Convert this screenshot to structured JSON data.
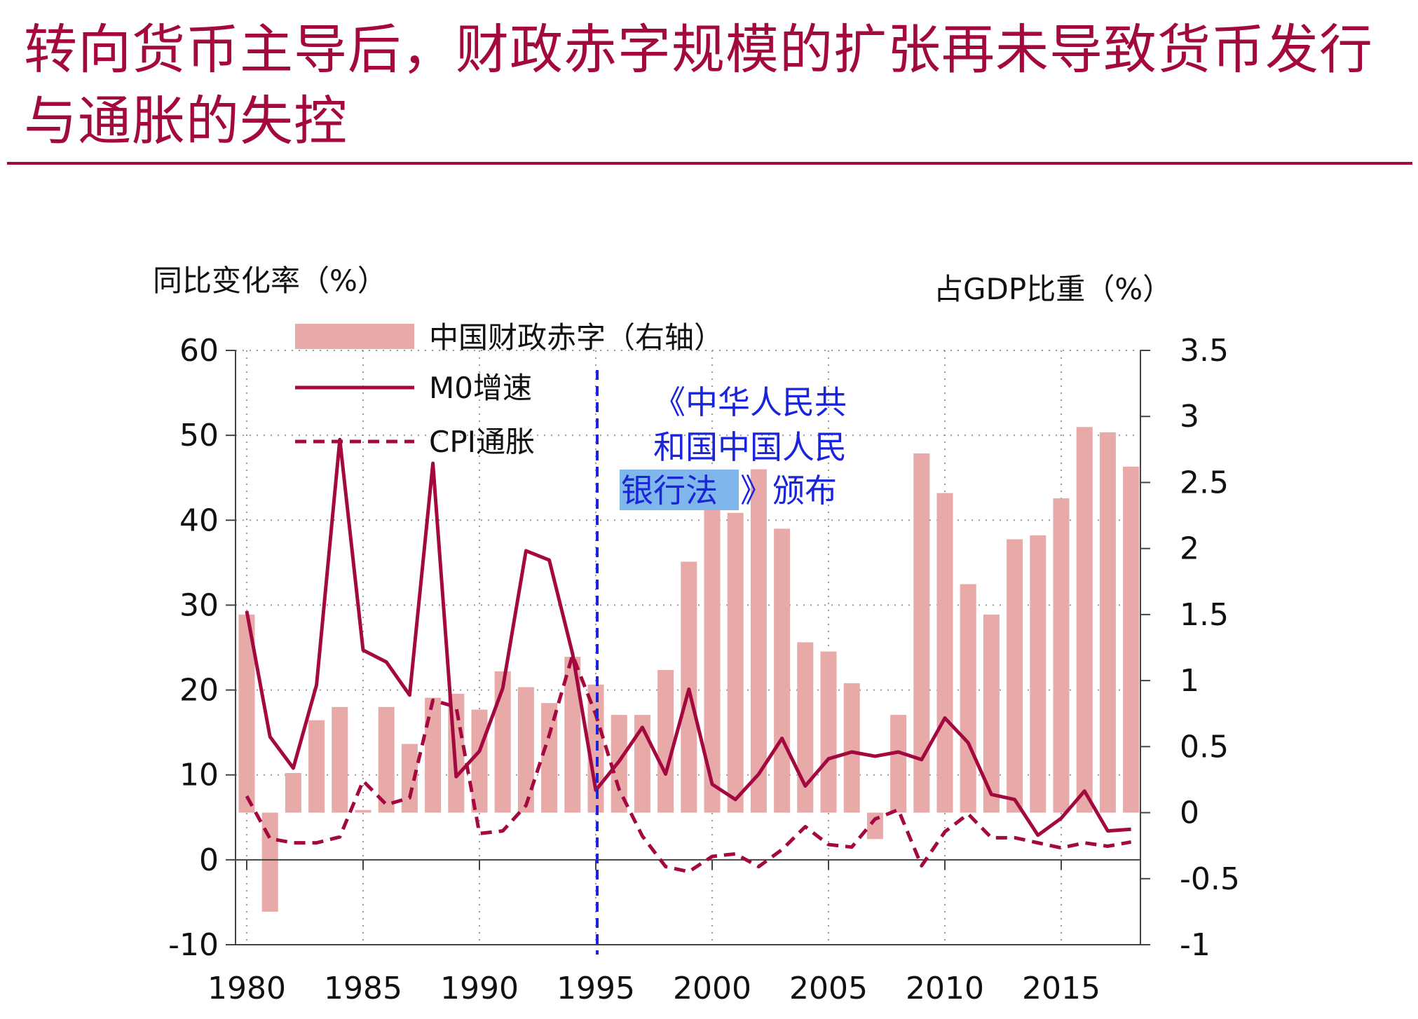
{
  "title": "转向货币主导后，财政赤字规模的扩张再未导致货币发行与通胀的失控",
  "chart_data": {
    "type": "bar+line",
    "left_axis_label": "同比变化率（%）",
    "right_axis_label": "占GDP比重（%）",
    "left_ylim": [
      -10,
      60
    ],
    "left_ticks": [
      "60",
      "50",
      "40",
      "30",
      "20",
      "10",
      "0",
      "-10"
    ],
    "right_ylim": [
      -1,
      3.5
    ],
    "right_ticks": [
      "3.5",
      "3",
      "2.5",
      "2",
      "1.5",
      "1",
      "0.5",
      "0",
      "-0.5",
      "-1"
    ],
    "x_ticks": [
      "1980",
      "1985",
      "1990",
      "1995",
      "2000",
      "2005",
      "2010",
      "2015"
    ],
    "years": [
      1980,
      1981,
      1982,
      1983,
      1984,
      1985,
      1986,
      1987,
      1988,
      1989,
      1990,
      1991,
      1992,
      1993,
      1994,
      1995,
      1996,
      1997,
      1998,
      1999,
      2000,
      2001,
      2002,
      2003,
      2004,
      2005,
      2006,
      2007,
      2008,
      2009,
      2010,
      2011,
      2012,
      2013,
      2014,
      2015,
      2016,
      2017,
      2018
    ],
    "series": [
      {
        "name": "中国财政赤字（右轴）",
        "axis": "right",
        "kind": "bar",
        "color": "#e8a9a9",
        "values": [
          1.5,
          -0.75,
          0.3,
          0.7,
          0.8,
          0.02,
          0.8,
          0.52,
          0.87,
          0.9,
          0.78,
          1.07,
          0.95,
          0.83,
          1.18,
          0.97,
          0.74,
          0.74,
          1.08,
          1.9,
          2.5,
          2.27,
          2.6,
          2.15,
          1.29,
          1.22,
          0.98,
          -0.2,
          0.74,
          2.72,
          2.42,
          1.73,
          1.5,
          2.07,
          2.1,
          2.38,
          2.92,
          2.88,
          2.62
        ]
      },
      {
        "name": "M0增速",
        "axis": "left",
        "kind": "line",
        "color": "#a3093f",
        "values": [
          29.3,
          14.5,
          10.8,
          20.6,
          49.5,
          24.7,
          23.3,
          19.4,
          46.7,
          9.8,
          12.8,
          20.2,
          36.4,
          35.3,
          24.3,
          8.2,
          11.6,
          15.6,
          10.1,
          20.1,
          8.9,
          7.1,
          10.1,
          14.3,
          8.7,
          11.9,
          12.7,
          12.2,
          12.7,
          11.8,
          16.7,
          13.8,
          7.7,
          7.1,
          2.9,
          4.9,
          8.1,
          3.4,
          3.6
        ]
      },
      {
        "name": "CPI通胀",
        "axis": "left",
        "kind": "dashed",
        "color": "#a3093f",
        "values": [
          7.5,
          2.5,
          2.0,
          2.0,
          2.7,
          9.3,
          6.5,
          7.3,
          18.8,
          18.0,
          3.1,
          3.4,
          6.4,
          14.7,
          24.1,
          17.1,
          8.3,
          2.8,
          -0.8,
          -1.4,
          0.4,
          0.7,
          -0.8,
          1.2,
          3.9,
          1.8,
          1.5,
          4.8,
          5.9,
          -0.7,
          3.3,
          5.4,
          2.6,
          2.6,
          2.0,
          1.4,
          2.0,
          1.6,
          2.1
        ]
      }
    ],
    "annotation": {
      "year": 1995,
      "lines": [
        "《中华人民共",
        "和国中国人民"
      ],
      "line3_highlight": "银行法",
      "line3_rest": "》颁布"
    }
  }
}
